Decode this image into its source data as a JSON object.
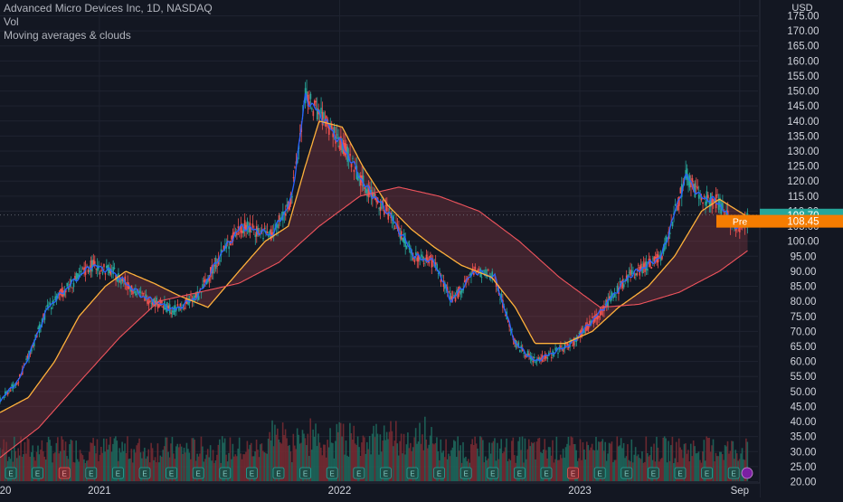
{
  "legend": {
    "title": "Advanced Micro Devices Inc, 1D, NASDAQ",
    "line2": "Vol",
    "line3": "Moving averages & clouds"
  },
  "axis": {
    "currency": "USD",
    "y_ticks": [
      "175.00",
      "170.00",
      "165.00",
      "160.00",
      "155.00",
      "150.00",
      "145.00",
      "140.00",
      "135.00",
      "130.00",
      "125.00",
      "120.00",
      "115.00",
      "110.00",
      "105.00",
      "100.00",
      "95.00",
      "90.00",
      "85.00",
      "80.00",
      "75.00",
      "70.00",
      "65.00",
      "60.00",
      "55.00",
      "50.00",
      "45.00",
      "40.00",
      "35.00",
      "30.00",
      "25.00",
      "20.00"
    ],
    "x_labels": [
      "20",
      "2021",
      "2022",
      "2023",
      "Sep"
    ]
  },
  "price_labels": {
    "last": "108.70",
    "pre_tag": "Pre",
    "pre": "108.45"
  },
  "chart_data": {
    "type": "line",
    "title": "Advanced Micro Devices Inc, 1D, NASDAQ",
    "y_range": [
      20,
      175
    ],
    "x_range": [
      "2020-08-03",
      "2023-09-15"
    ],
    "last_price": 108.7,
    "premarket_price": 108.45,
    "series": [
      {
        "values": [
          [
            [
              "2020-08-03",
              47
            ],
            [
              "2020-09-01",
              54
            ],
            [
              "2020-10-15",
              78
            ],
            [
              "2020-11-15",
              85
            ],
            [
              "2020-12-20",
              92
            ],
            [
              "2021-01-20",
              90
            ],
            [
              "2021-03-05",
              82
            ],
            [
              "2021-04-25",
              77
            ],
            [
              "2021-06-01",
              82
            ],
            [
              "2021-07-05",
              96
            ],
            [
              "2021-08-05",
              105
            ],
            [
              "2021-09-20",
              102
            ],
            [
              "2021-10-20",
              114
            ],
            [
              "2021-11-10",
              148
            ],
            [
              "2021-12-10",
              140
            ],
            [
              "2022-01-05",
              132
            ],
            [
              "2022-02-10",
              118
            ],
            [
              "2022-03-15",
              110
            ],
            [
              "2022-04-25",
              95
            ],
            [
              "2022-05-25",
              93
            ],
            [
              "2022-06-20",
              80
            ],
            [
              "2022-07-25",
              90
            ],
            [
              "2022-08-25",
              88
            ],
            [
              "2022-09-25",
              66
            ],
            [
              "2022-10-25",
              60
            ],
            [
              "2022-12-20",
              66
            ],
            [
              "2023-01-30",
              76
            ],
            [
              "2023-03-15",
              88
            ],
            [
              "2023-05-05",
              95
            ],
            [
              "2023-06-12",
              122
            ],
            [
              "2023-07-01",
              115
            ],
            [
              "2023-07-31",
              113
            ],
            [
              "2023-08-25",
              104
            ],
            [
              "2023-09-14",
              107
            ]
          ]
        ],
        "color": "#2962ff"
      },
      {
        "values": [
          [
            [
              "2020-08-03",
              43
            ],
            [
              "2020-09-15",
              48
            ],
            [
              "2020-10-25",
              60
            ],
            [
              "2020-12-01",
              75
            ],
            [
              "2021-01-10",
              85
            ],
            [
              "2021-02-10",
              90
            ],
            [
              "2021-03-25",
              86
            ],
            [
              "2021-05-01",
              82
            ],
            [
              "2021-06-15",
              78
            ],
            [
              "2021-08-01",
              90
            ],
            [
              "2021-09-10",
              100
            ],
            [
              "2021-10-15",
              105
            ],
            [
              "2021-11-10",
              125
            ],
            [
              "2021-12-01",
              140
            ],
            [
              "2022-01-05",
              138
            ],
            [
              "2022-02-05",
              125
            ],
            [
              "2022-03-15",
              112
            ],
            [
              "2022-04-20",
              104
            ],
            [
              "2022-05-25",
              98
            ],
            [
              "2022-07-05",
              92
            ],
            [
              "2022-08-20",
              88
            ],
            [
              "2022-09-25",
              78
            ],
            [
              "2022-10-25",
              66
            ],
            [
              "2022-12-10",
              66
            ],
            [
              "2023-01-20",
              70
            ],
            [
              "2023-03-01",
              78
            ],
            [
              "2023-04-15",
              85
            ],
            [
              "2023-05-25",
              95
            ],
            [
              "2023-07-05",
              110
            ],
            [
              "2023-08-01",
              114
            ],
            [
              "2023-09-14",
              108
            ]
          ]
        ],
        "color": "#ffb13b"
      },
      {
        "values": [
          [
            [
              "2020-08-03",
              28
            ],
            [
              "2020-10-01",
              38
            ],
            [
              "2020-12-01",
              53
            ],
            [
              "2021-02-01",
              68
            ],
            [
              "2021-04-01",
              80
            ],
            [
              "2021-06-01",
              83
            ],
            [
              "2021-08-01",
              86
            ],
            [
              "2021-10-01",
              93
            ],
            [
              "2021-12-01",
              105
            ],
            [
              "2022-02-01",
              115
            ],
            [
              "2022-04-01",
              118
            ],
            [
              "2022-06-01",
              115
            ],
            [
              "2022-08-01",
              110
            ],
            [
              "2022-10-01",
              100
            ],
            [
              "2022-12-01",
              88
            ],
            [
              "2023-02-01",
              78
            ],
            [
              "2023-04-01",
              79
            ],
            [
              "2023-06-01",
              83
            ],
            [
              "2023-08-01",
              90
            ],
            [
              "2023-09-14",
              97
            ]
          ]
        ],
        "color": "#f0545d"
      }
    ]
  }
}
